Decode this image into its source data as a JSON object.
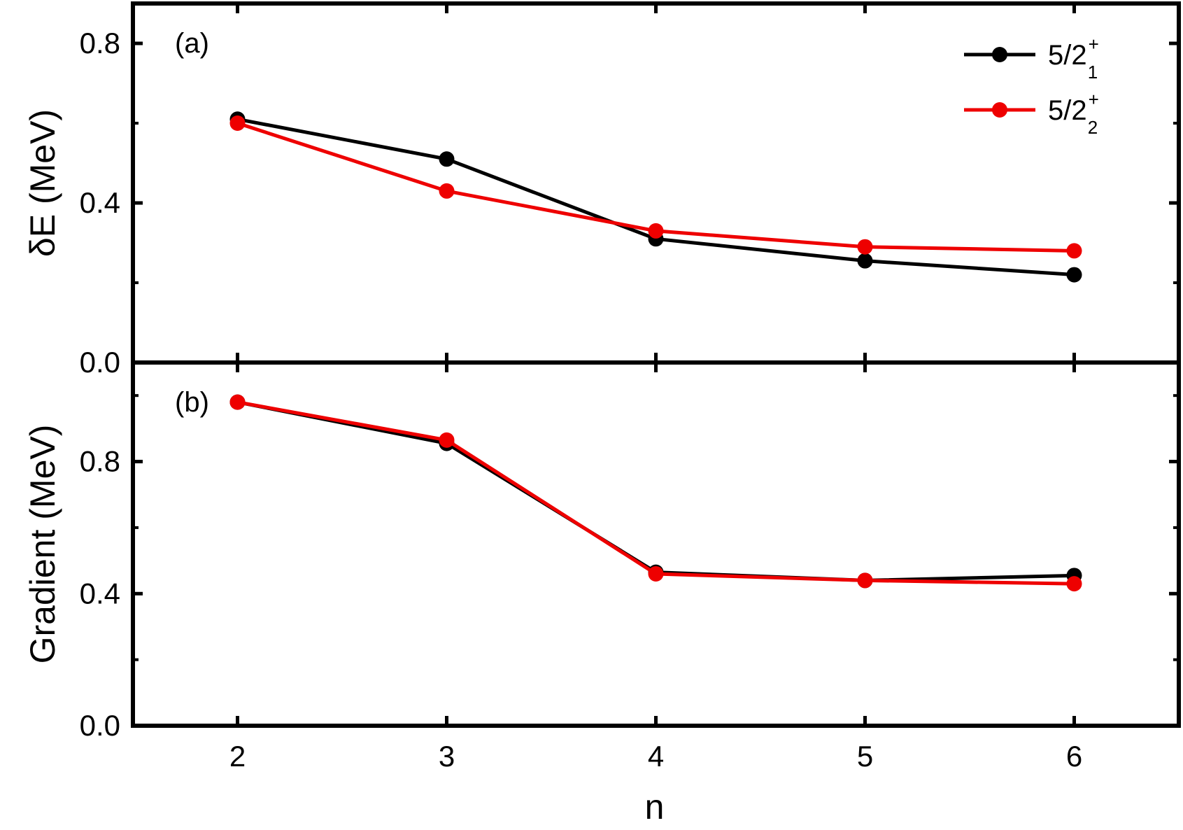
{
  "chart_data": [
    {
      "panel": "(a)",
      "type": "line",
      "ylabel": "δE (MeV)",
      "ylim": [
        0.0,
        0.9
      ],
      "yticks": [
        "0.0",
        "0.4",
        "0.8"
      ],
      "x": [
        2,
        3,
        4,
        5,
        6
      ],
      "series": [
        {
          "name": "5/2",
          "sup": "+",
          "sub": "1",
          "color": "#000000",
          "values": [
            0.61,
            0.51,
            0.31,
            0.255,
            0.22
          ]
        },
        {
          "name": "5/2",
          "sup": "+",
          "sub": "2",
          "color": "#ee0000",
          "values": [
            0.6,
            0.43,
            0.33,
            0.29,
            0.28
          ]
        }
      ],
      "legend_position": "top-right"
    },
    {
      "panel": "(b)",
      "type": "line",
      "ylabel": "Gradient (MeV)",
      "xlabel": "n",
      "ylim": [
        0.0,
        1.1
      ],
      "yticks": [
        "0.0",
        "0.4",
        "0.8"
      ],
      "x": [
        2,
        3,
        4,
        5,
        6
      ],
      "xticks": [
        "2",
        "3",
        "4",
        "5",
        "6"
      ],
      "series": [
        {
          "name": "5/2",
          "sup": "+",
          "sub": "1",
          "color": "#000000",
          "values": [
            0.98,
            0.855,
            0.465,
            0.44,
            0.455
          ]
        },
        {
          "name": "5/2",
          "sup": "+",
          "sub": "2",
          "color": "#ee0000",
          "values": [
            0.98,
            0.865,
            0.46,
            0.44,
            0.43
          ]
        }
      ]
    }
  ]
}
